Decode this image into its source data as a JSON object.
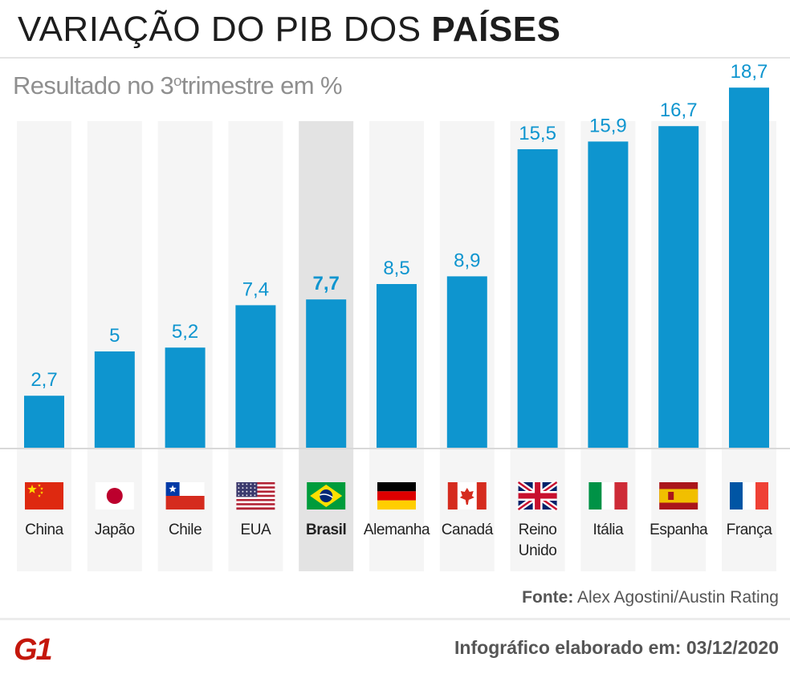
{
  "header": {
    "title_regular": "VARIAÇÃO DO PIB DOS",
    "title_bold": "PAÍSES",
    "subtitle_pre": "Resultado no 3",
    "subtitle_sup": "o",
    "subtitle_post": "trimestre em %"
  },
  "chart_data": {
    "type": "bar",
    "title": "VARIAÇÃO DO PIB DOS PAÍSES",
    "subtitle": "Resultado no 3ºtrimestre em %",
    "categories": [
      "China",
      "Japão",
      "Chile",
      "EUA",
      "Brasil",
      "Alemanha",
      "Canadá",
      "Reino Unido",
      "Itália",
      "Espanha",
      "França"
    ],
    "values": [
      2.7,
      5,
      5.2,
      7.4,
      7.7,
      8.5,
      8.9,
      15.5,
      15.9,
      16.7,
      18.7
    ],
    "value_labels": [
      "2,7",
      "5",
      "5,2",
      "7,4",
      "7,7",
      "8,5",
      "8,9",
      "15,5",
      "15,9",
      "16,7",
      "18,7"
    ],
    "label_lines": [
      [
        "China"
      ],
      [
        "Japão"
      ],
      [
        "Chile"
      ],
      [
        "EUA"
      ],
      [
        "Brasil"
      ],
      [
        "Alemanha"
      ],
      [
        "Canadá"
      ],
      [
        "Reino",
        "Unido"
      ],
      [
        "Itália"
      ],
      [
        "Espanha"
      ],
      [
        "França"
      ]
    ],
    "flags": [
      "china-flag",
      "japan-flag",
      "chile-flag",
      "usa-flag",
      "brazil-flag",
      "germany-flag",
      "canada-flag",
      "uk-flag",
      "italy-flag",
      "spain-flag",
      "france-flag"
    ],
    "highlight": "Brasil",
    "ylim": [
      0,
      20
    ],
    "xlabel": "",
    "ylabel": "",
    "grid": false,
    "colors": {
      "bar": "#0e95cf",
      "value_label": "#0e95cf",
      "column_bg": "#f5f5f5",
      "highlight_bg": "#e3e3e3",
      "baseline": "#d8d8d8",
      "category_text": "#222222"
    }
  },
  "footer": {
    "source_label": "Fonte:",
    "source_text": "Alex Agostini/Austin Rating",
    "logo_text": "G1",
    "logo_color": "#c4170c",
    "credit_label": "Infográfico elaborado em:",
    "credit_date": "03/12/2020"
  }
}
